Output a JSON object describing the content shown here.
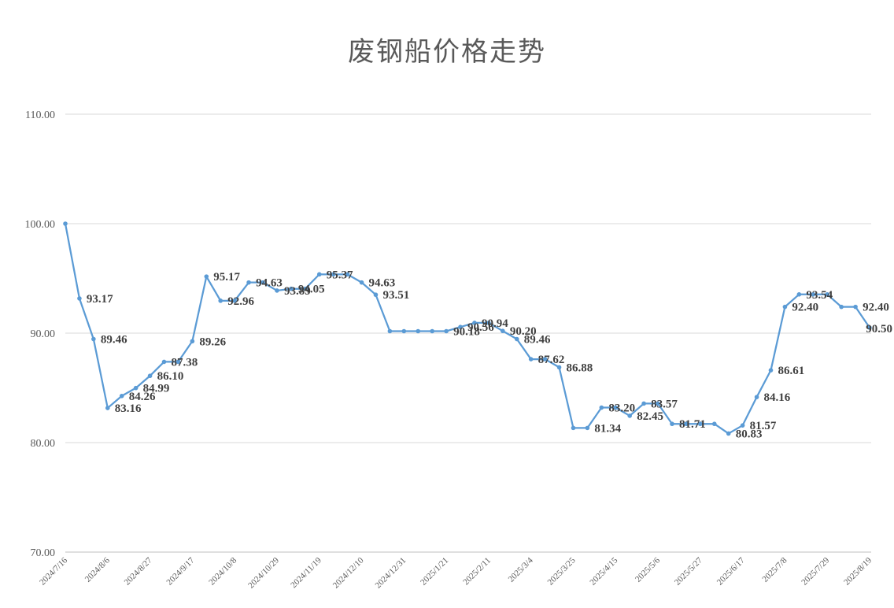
{
  "chart_data": {
    "type": "line",
    "title": "废钢船价格走势",
    "xlabel": "",
    "ylabel": "",
    "ylim": [
      70,
      110
    ],
    "y_ticks": [
      "70.00",
      "80.00",
      "90.00",
      "100.00",
      "110.00"
    ],
    "y_tick_values": [
      70,
      80,
      90,
      100,
      110
    ],
    "x_tick_labels": [
      "2024/7/16",
      "2024/8/6",
      "2024/8/27",
      "2024/9/17",
      "2024/10/8",
      "2024/10/29",
      "2024/11/19",
      "2024/12/10",
      "2024/12/31",
      "2025/1/21",
      "2025/2/11",
      "2025/3/4",
      "2025/3/25",
      "2025/4/15",
      "2025/5/6",
      "2025/5/27",
      "2025/6/17",
      "2025/7/8",
      "2025/7/29",
      "2025/8/19"
    ],
    "grid": true,
    "legend": "none",
    "color": "#5b9bd5",
    "series": [
      {
        "values": [
          100.0,
          93.17,
          89.46,
          83.16,
          84.26,
          84.99,
          86.1,
          87.38,
          87.38,
          89.26,
          95.17,
          92.96,
          92.96,
          94.63,
          94.63,
          93.89,
          94.05,
          94.05,
          95.37,
          95.37,
          95.37,
          94.63,
          93.51,
          90.18,
          90.18,
          90.18,
          90.18,
          90.18,
          90.56,
          90.94,
          90.94,
          90.2,
          89.46,
          87.62,
          87.62,
          86.88,
          81.34,
          81.34,
          83.2,
          83.2,
          82.45,
          83.57,
          83.57,
          81.71,
          81.71,
          81.71,
          81.71,
          80.83,
          81.57,
          84.16,
          86.61,
          92.4,
          93.54,
          93.54,
          93.54,
          92.4,
          92.4,
          90.5
        ],
        "labels": [
          "",
          "93.17",
          "89.46",
          "83.16",
          "84.26",
          "84.99",
          "86.10",
          "87.38",
          "",
          "89.26",
          "95.17",
          "92.96",
          "",
          "94.63",
          "",
          "93.89",
          "94.05",
          "",
          "95.37",
          "",
          "",
          "94.63",
          "93.51",
          "",
          "",
          "",
          "",
          "90.18",
          "90.56",
          "90.94",
          "",
          "90.20",
          "89.46",
          "87.62",
          "",
          "86.88",
          "",
          "81.34",
          "83.20",
          "",
          "82.45",
          "83.57",
          "",
          "81.71",
          "",
          "",
          "",
          "80.83",
          "81.57",
          "84.16",
          "86.61",
          "92.40",
          "93.54",
          "",
          "",
          "",
          "92.40",
          "90.50"
        ]
      }
    ]
  }
}
